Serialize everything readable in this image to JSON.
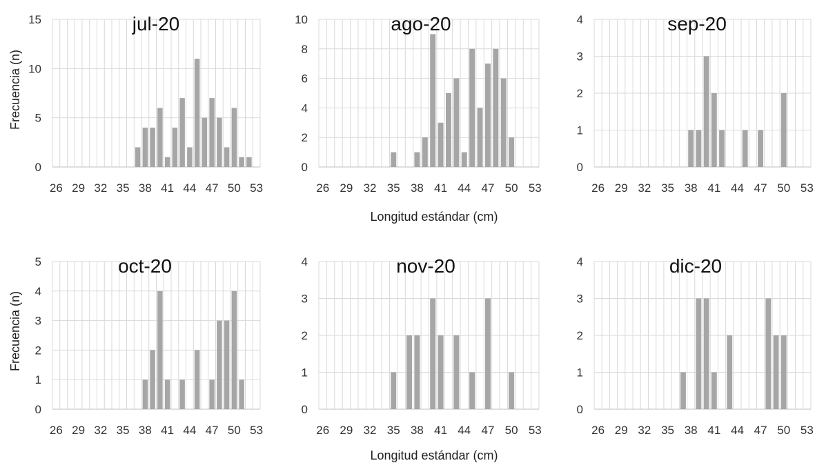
{
  "figure": {
    "ylabel": "Frecuencia (n)",
    "xlabel": "Longitud estándar (cm)"
  },
  "chart_data": [
    {
      "type": "bar",
      "title": "jul-20",
      "ylim": [
        0,
        15
      ],
      "yticks": [
        0,
        5,
        10,
        15
      ],
      "xticks": [
        26,
        29,
        32,
        35,
        38,
        41,
        44,
        47,
        50,
        53
      ],
      "x": [
        37,
        38,
        39,
        40,
        41,
        42,
        43,
        44,
        45,
        46,
        47,
        48,
        49,
        50,
        51,
        52
      ],
      "values": [
        2,
        4,
        4,
        6,
        1,
        4,
        7,
        2,
        11,
        5,
        7,
        5,
        2,
        6,
        1,
        1
      ],
      "bar_color": "#a6a6a6",
      "grid": true
    },
    {
      "type": "bar",
      "title": "ago-20",
      "ylim": [
        0,
        10
      ],
      "yticks": [
        0,
        2,
        4,
        6,
        8,
        10
      ],
      "xticks": [
        26,
        29,
        32,
        35,
        38,
        41,
        44,
        47,
        50,
        53
      ],
      "x": [
        35,
        38,
        39,
        40,
        41,
        42,
        43,
        44,
        45,
        46,
        47,
        48,
        49,
        50
      ],
      "values": [
        1,
        1,
        2,
        9,
        3,
        5,
        6,
        1,
        8,
        4,
        7,
        8,
        6,
        2
      ],
      "bar_color": "#a6a6a6",
      "grid": true
    },
    {
      "type": "bar",
      "title": "sep-20",
      "ylim": [
        0,
        4
      ],
      "yticks": [
        0,
        1,
        2,
        3,
        4
      ],
      "xticks": [
        26,
        29,
        32,
        35,
        38,
        41,
        44,
        47,
        50,
        53
      ],
      "x": [
        38,
        39,
        40,
        41,
        42,
        45,
        47,
        50
      ],
      "values": [
        1,
        1,
        3,
        2,
        1,
        1,
        1,
        2
      ],
      "bar_color": "#a6a6a6",
      "grid": true
    },
    {
      "type": "bar",
      "title": "oct-20",
      "ylim": [
        0,
        5
      ],
      "yticks": [
        0,
        1,
        2,
        3,
        4,
        5
      ],
      "xticks": [
        26,
        29,
        32,
        35,
        38,
        41,
        44,
        47,
        50,
        53
      ],
      "x": [
        38,
        39,
        40,
        41,
        43,
        45,
        47,
        48,
        49,
        50,
        51
      ],
      "values": [
        1,
        2,
        4,
        1,
        1,
        2,
        1,
        3,
        3,
        4,
        1
      ],
      "bar_color": "#a6a6a6",
      "grid": true
    },
    {
      "type": "bar",
      "title": "nov-20",
      "ylim": [
        0,
        4
      ],
      "yticks": [
        0,
        1,
        2,
        3,
        4
      ],
      "xticks": [
        26,
        29,
        32,
        35,
        38,
        41,
        44,
        47,
        50,
        53
      ],
      "x": [
        35,
        37,
        38,
        40,
        41,
        43,
        45,
        47,
        50
      ],
      "values": [
        1,
        2,
        2,
        3,
        2,
        2,
        1,
        3,
        1
      ],
      "bar_color": "#a6a6a6",
      "grid": true
    },
    {
      "type": "bar",
      "title": "dic-20",
      "ylim": [
        0,
        4
      ],
      "yticks": [
        0,
        1,
        2,
        3,
        4
      ],
      "xticks": [
        26,
        29,
        32,
        35,
        38,
        41,
        44,
        47,
        50,
        53
      ],
      "x": [
        37,
        39,
        40,
        41,
        43,
        48,
        49,
        50
      ],
      "values": [
        1,
        3,
        3,
        1,
        2,
        3,
        2,
        2
      ],
      "bar_color": "#a6a6a6",
      "grid": true
    }
  ]
}
